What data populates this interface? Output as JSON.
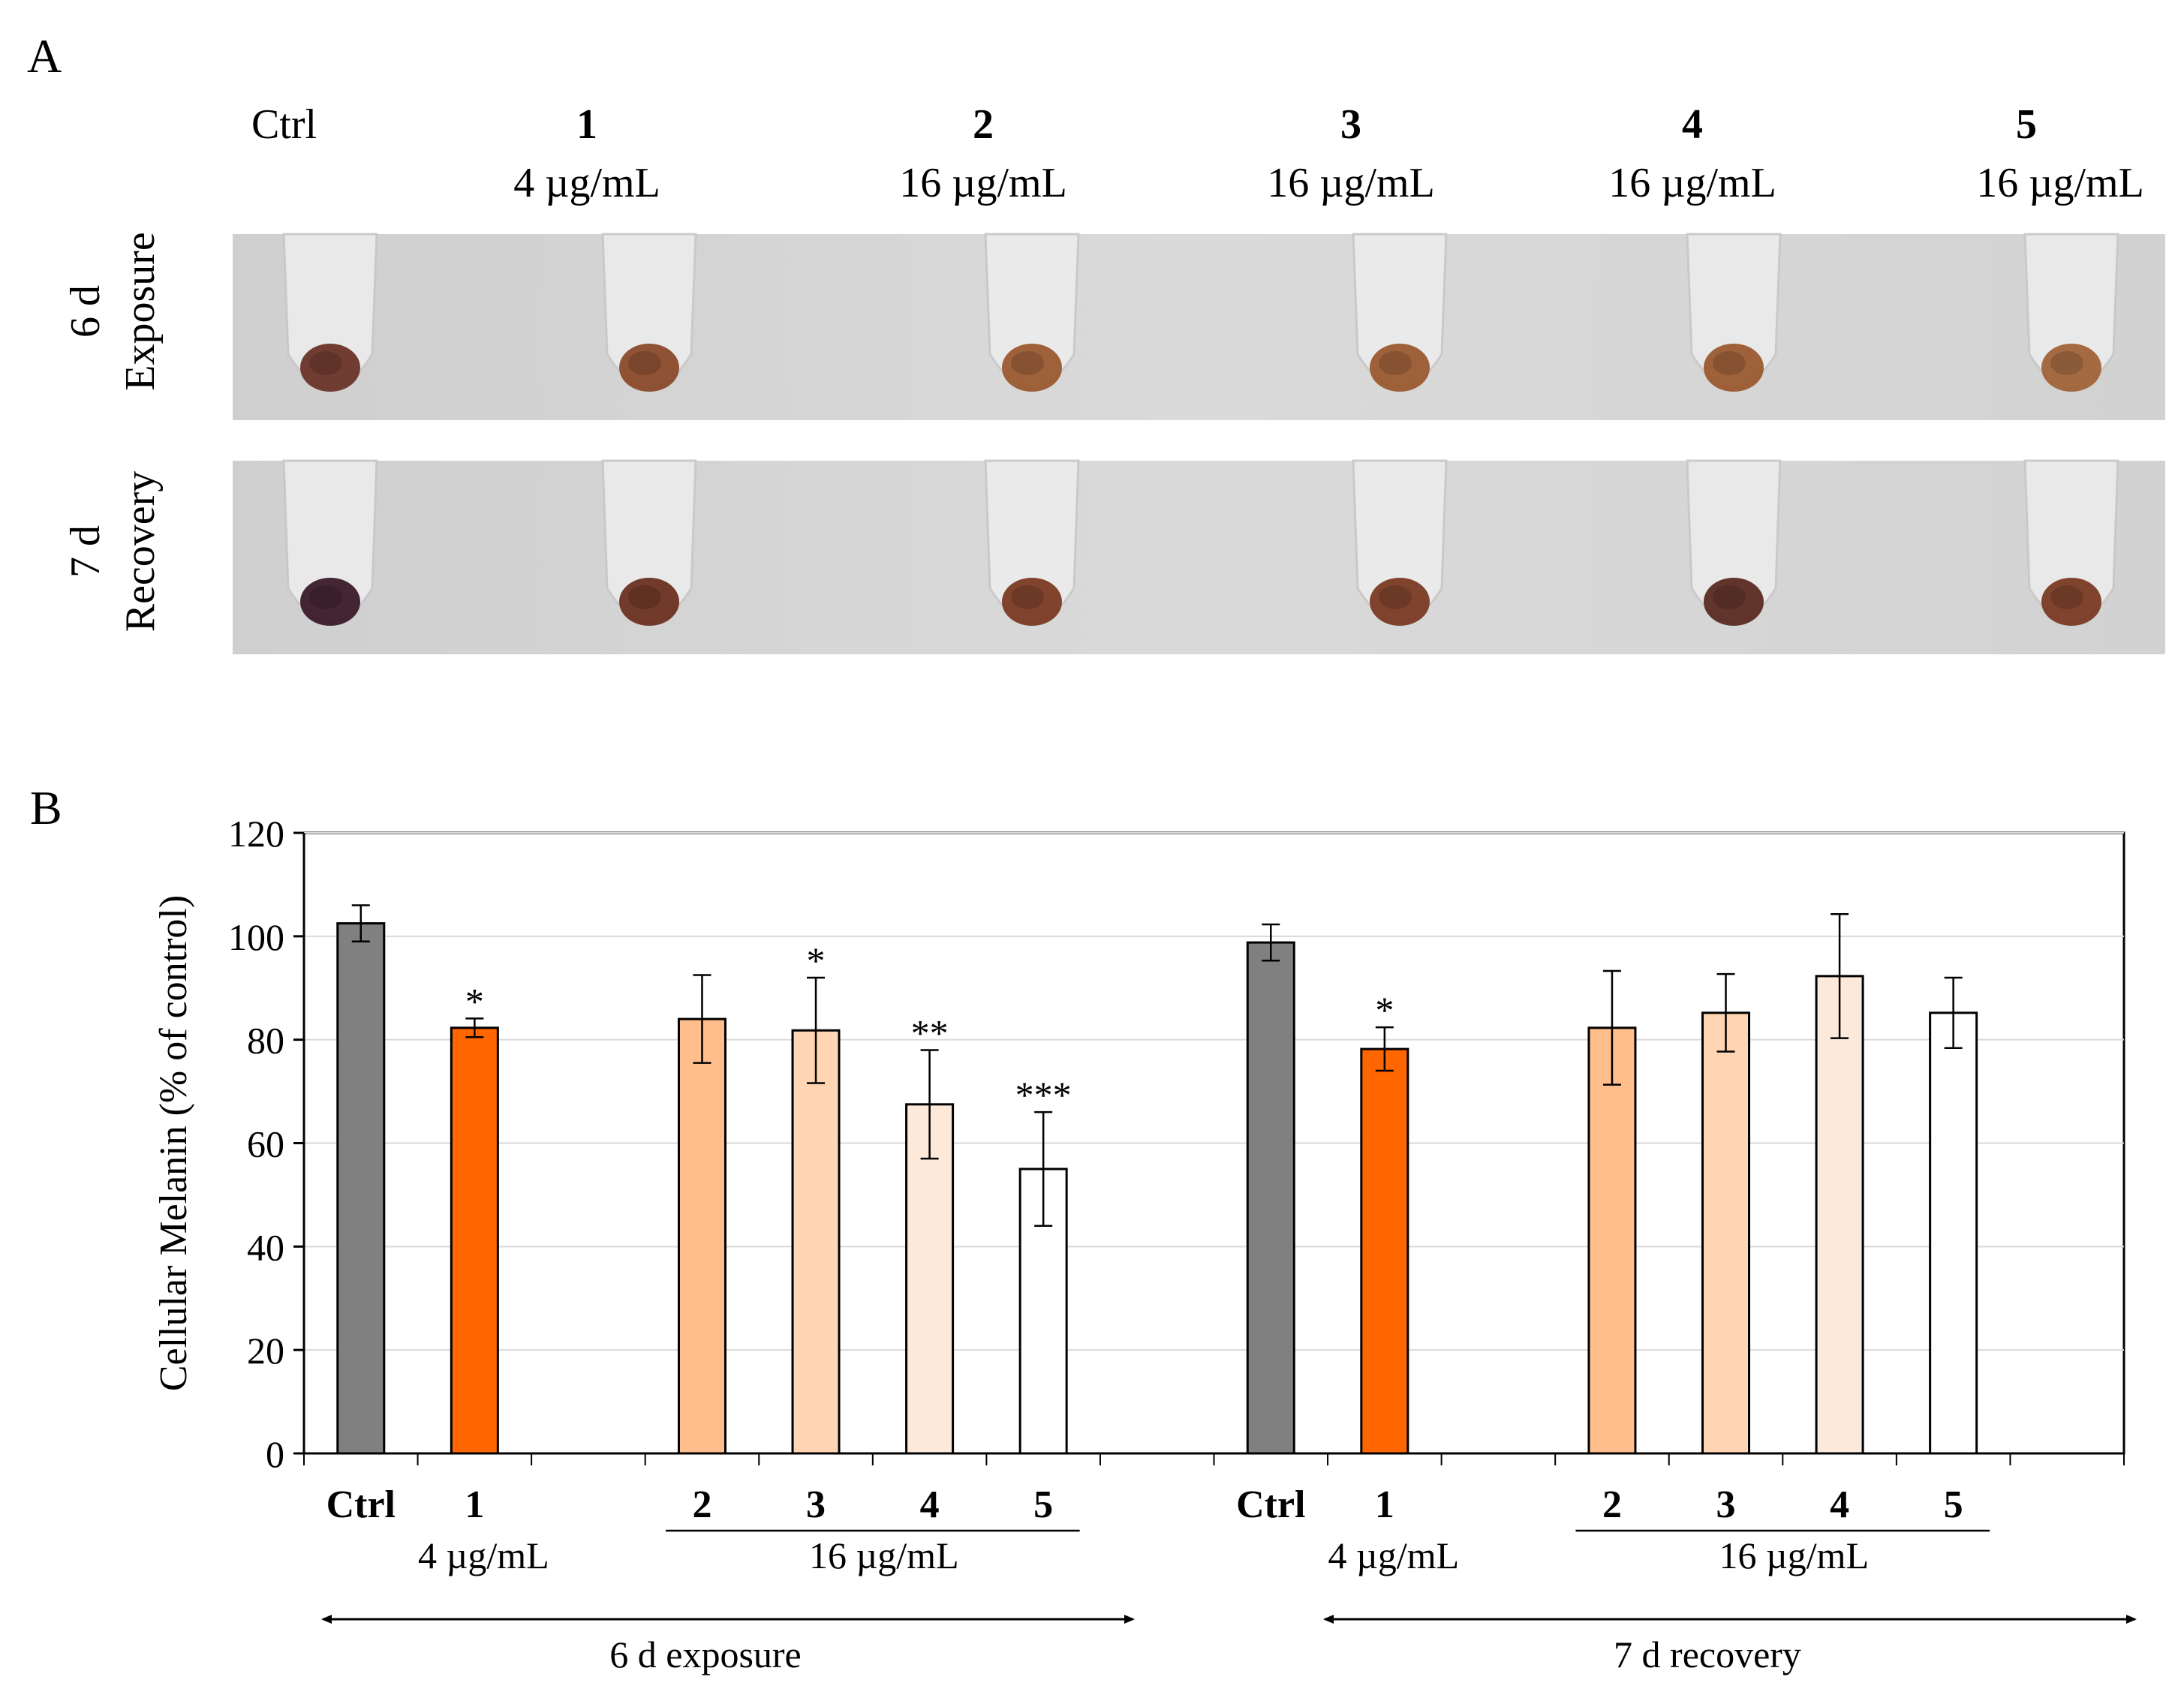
{
  "panel_a": {
    "label": "A",
    "columns": [
      {
        "id": "Ctrl",
        "bold": false,
        "conc": ""
      },
      {
        "id": "1",
        "bold": true,
        "conc": "4 µg/mL"
      },
      {
        "id": "2",
        "bold": true,
        "conc": "16 µg/mL"
      },
      {
        "id": "3",
        "bold": true,
        "conc": "16 µg/mL"
      },
      {
        "id": "4",
        "bold": true,
        "conc": "16 µg/mL"
      },
      {
        "id": "5",
        "bold": true,
        "conc": "16 µg/mL"
      }
    ],
    "rows": [
      {
        "line1": "6 d",
        "line2": "Exposure"
      },
      {
        "line1": "7 d",
        "line2": "Recovery"
      }
    ]
  },
  "chart_data": {
    "panel_label": "B",
    "type": "bar",
    "ylabel": "Cellular Melanin  (% of control)",
    "ylim": [
      0,
      120
    ],
    "yticks": [
      0,
      20,
      40,
      60,
      80,
      100,
      120
    ],
    "grid": true,
    "categories": [
      "Ctrl",
      "1",
      "",
      "2",
      "3",
      "4",
      "5",
      "",
      "Ctrl",
      "1",
      "",
      "2",
      "3",
      "4",
      "5"
    ],
    "values": [
      102.5,
      82.3,
      null,
      84,
      81.8,
      67.5,
      55,
      null,
      98.8,
      78.2,
      null,
      82.3,
      85.2,
      92.3,
      85.2
    ],
    "errors": [
      3.5,
      1.8,
      null,
      8.5,
      10.2,
      10.5,
      11,
      null,
      3.5,
      4.2,
      null,
      11,
      7.5,
      12,
      6.8
    ],
    "significance": [
      "",
      "*",
      "",
      "",
      "*",
      "**",
      "***",
      "",
      "",
      "*",
      "",
      "",
      "",
      "",
      ""
    ],
    "bar_colors": [
      "#808080",
      "#ff6600",
      null,
      "#ffbe8c",
      "#ffd5b4",
      "#fde9d9",
      "#ffffff",
      null,
      "#808080",
      "#ff6600",
      null,
      "#ffbe8c",
      "#ffd5b4",
      "#fde9d9",
      "#ffffff"
    ],
    "concentration_labels": {
      "single": "4 µg/mL",
      "group": "16 µg/mL"
    },
    "phases": [
      "6 d exposure",
      "7 d recovery"
    ]
  }
}
